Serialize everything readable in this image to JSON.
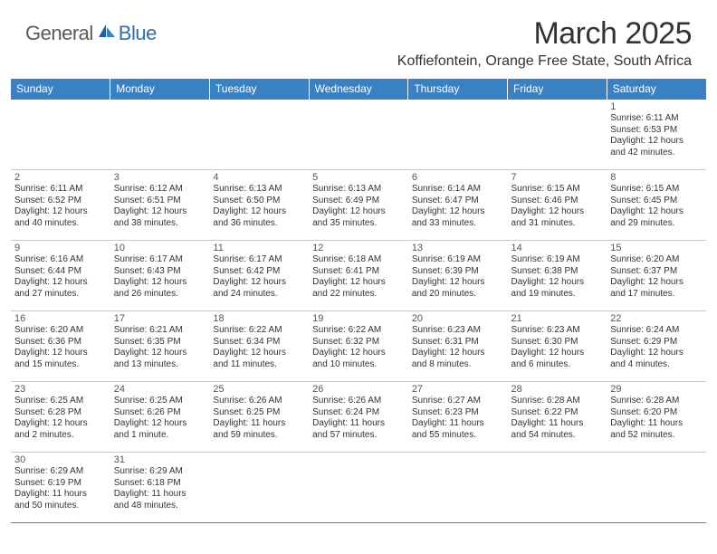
{
  "logo": {
    "part1": "General",
    "part2": "Blue"
  },
  "title": "March 2025",
  "location": "Koffiefontein, Orange Free State, South Africa",
  "colors": {
    "header_bg": "#3a81c4",
    "header_text": "#ffffff",
    "border_top": "#3a81c4",
    "border_bottom": "#c8c8c8",
    "logo_gray": "#5a5a5a",
    "logo_blue": "#2b6fb0",
    "text": "#333333"
  },
  "weekdays": [
    "Sunday",
    "Monday",
    "Tuesday",
    "Wednesday",
    "Thursday",
    "Friday",
    "Saturday"
  ],
  "weeks": [
    [
      null,
      null,
      null,
      null,
      null,
      null,
      {
        "n": "1",
        "sr": "Sunrise: 6:11 AM",
        "ss": "Sunset: 6:53 PM",
        "d1": "Daylight: 12 hours",
        "d2": "and 42 minutes."
      }
    ],
    [
      {
        "n": "2",
        "sr": "Sunrise: 6:11 AM",
        "ss": "Sunset: 6:52 PM",
        "d1": "Daylight: 12 hours",
        "d2": "and 40 minutes."
      },
      {
        "n": "3",
        "sr": "Sunrise: 6:12 AM",
        "ss": "Sunset: 6:51 PM",
        "d1": "Daylight: 12 hours",
        "d2": "and 38 minutes."
      },
      {
        "n": "4",
        "sr": "Sunrise: 6:13 AM",
        "ss": "Sunset: 6:50 PM",
        "d1": "Daylight: 12 hours",
        "d2": "and 36 minutes."
      },
      {
        "n": "5",
        "sr": "Sunrise: 6:13 AM",
        "ss": "Sunset: 6:49 PM",
        "d1": "Daylight: 12 hours",
        "d2": "and 35 minutes."
      },
      {
        "n": "6",
        "sr": "Sunrise: 6:14 AM",
        "ss": "Sunset: 6:47 PM",
        "d1": "Daylight: 12 hours",
        "d2": "and 33 minutes."
      },
      {
        "n": "7",
        "sr": "Sunrise: 6:15 AM",
        "ss": "Sunset: 6:46 PM",
        "d1": "Daylight: 12 hours",
        "d2": "and 31 minutes."
      },
      {
        "n": "8",
        "sr": "Sunrise: 6:15 AM",
        "ss": "Sunset: 6:45 PM",
        "d1": "Daylight: 12 hours",
        "d2": "and 29 minutes."
      }
    ],
    [
      {
        "n": "9",
        "sr": "Sunrise: 6:16 AM",
        "ss": "Sunset: 6:44 PM",
        "d1": "Daylight: 12 hours",
        "d2": "and 27 minutes."
      },
      {
        "n": "10",
        "sr": "Sunrise: 6:17 AM",
        "ss": "Sunset: 6:43 PM",
        "d1": "Daylight: 12 hours",
        "d2": "and 26 minutes."
      },
      {
        "n": "11",
        "sr": "Sunrise: 6:17 AM",
        "ss": "Sunset: 6:42 PM",
        "d1": "Daylight: 12 hours",
        "d2": "and 24 minutes."
      },
      {
        "n": "12",
        "sr": "Sunrise: 6:18 AM",
        "ss": "Sunset: 6:41 PM",
        "d1": "Daylight: 12 hours",
        "d2": "and 22 minutes."
      },
      {
        "n": "13",
        "sr": "Sunrise: 6:19 AM",
        "ss": "Sunset: 6:39 PM",
        "d1": "Daylight: 12 hours",
        "d2": "and 20 minutes."
      },
      {
        "n": "14",
        "sr": "Sunrise: 6:19 AM",
        "ss": "Sunset: 6:38 PM",
        "d1": "Daylight: 12 hours",
        "d2": "and 19 minutes."
      },
      {
        "n": "15",
        "sr": "Sunrise: 6:20 AM",
        "ss": "Sunset: 6:37 PM",
        "d1": "Daylight: 12 hours",
        "d2": "and 17 minutes."
      }
    ],
    [
      {
        "n": "16",
        "sr": "Sunrise: 6:20 AM",
        "ss": "Sunset: 6:36 PM",
        "d1": "Daylight: 12 hours",
        "d2": "and 15 minutes."
      },
      {
        "n": "17",
        "sr": "Sunrise: 6:21 AM",
        "ss": "Sunset: 6:35 PM",
        "d1": "Daylight: 12 hours",
        "d2": "and 13 minutes."
      },
      {
        "n": "18",
        "sr": "Sunrise: 6:22 AM",
        "ss": "Sunset: 6:34 PM",
        "d1": "Daylight: 12 hours",
        "d2": "and 11 minutes."
      },
      {
        "n": "19",
        "sr": "Sunrise: 6:22 AM",
        "ss": "Sunset: 6:32 PM",
        "d1": "Daylight: 12 hours",
        "d2": "and 10 minutes."
      },
      {
        "n": "20",
        "sr": "Sunrise: 6:23 AM",
        "ss": "Sunset: 6:31 PM",
        "d1": "Daylight: 12 hours",
        "d2": "and 8 minutes."
      },
      {
        "n": "21",
        "sr": "Sunrise: 6:23 AM",
        "ss": "Sunset: 6:30 PM",
        "d1": "Daylight: 12 hours",
        "d2": "and 6 minutes."
      },
      {
        "n": "22",
        "sr": "Sunrise: 6:24 AM",
        "ss": "Sunset: 6:29 PM",
        "d1": "Daylight: 12 hours",
        "d2": "and 4 minutes."
      }
    ],
    [
      {
        "n": "23",
        "sr": "Sunrise: 6:25 AM",
        "ss": "Sunset: 6:28 PM",
        "d1": "Daylight: 12 hours",
        "d2": "and 2 minutes."
      },
      {
        "n": "24",
        "sr": "Sunrise: 6:25 AM",
        "ss": "Sunset: 6:26 PM",
        "d1": "Daylight: 12 hours",
        "d2": "and 1 minute."
      },
      {
        "n": "25",
        "sr": "Sunrise: 6:26 AM",
        "ss": "Sunset: 6:25 PM",
        "d1": "Daylight: 11 hours",
        "d2": "and 59 minutes."
      },
      {
        "n": "26",
        "sr": "Sunrise: 6:26 AM",
        "ss": "Sunset: 6:24 PM",
        "d1": "Daylight: 11 hours",
        "d2": "and 57 minutes."
      },
      {
        "n": "27",
        "sr": "Sunrise: 6:27 AM",
        "ss": "Sunset: 6:23 PM",
        "d1": "Daylight: 11 hours",
        "d2": "and 55 minutes."
      },
      {
        "n": "28",
        "sr": "Sunrise: 6:28 AM",
        "ss": "Sunset: 6:22 PM",
        "d1": "Daylight: 11 hours",
        "d2": "and 54 minutes."
      },
      {
        "n": "29",
        "sr": "Sunrise: 6:28 AM",
        "ss": "Sunset: 6:20 PM",
        "d1": "Daylight: 11 hours",
        "d2": "and 52 minutes."
      }
    ],
    [
      {
        "n": "30",
        "sr": "Sunrise: 6:29 AM",
        "ss": "Sunset: 6:19 PM",
        "d1": "Daylight: 11 hours",
        "d2": "and 50 minutes."
      },
      {
        "n": "31",
        "sr": "Sunrise: 6:29 AM",
        "ss": "Sunset: 6:18 PM",
        "d1": "Daylight: 11 hours",
        "d2": "and 48 minutes."
      },
      null,
      null,
      null,
      null,
      null
    ]
  ]
}
